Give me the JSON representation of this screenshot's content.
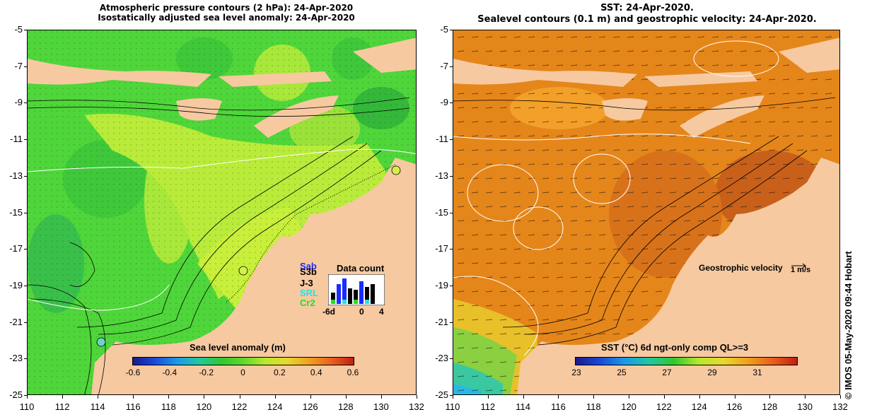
{
  "left_panel": {
    "title_line1": "Atmospheric pressure contours (2 hPa): 24-Apr-2020",
    "title_line2": "Isostatically adjusted sea level anomaly: 24-Apr-2020",
    "colorbar_title": "Sea level anomaly (m)",
    "colorbar_labels": [
      "-0.6",
      "-0.4",
      "-0.2",
      "0",
      "0.2",
      "0.4",
      "0.6"
    ],
    "data_count": {
      "title": "Data count",
      "satellites": [
        {
          "name": "Sab",
          "color": "#1a2cff"
        },
        {
          "name": "S3b",
          "color": "#000000"
        },
        {
          "name": "J-3",
          "color": "#000000"
        },
        {
          "name": "SRL",
          "color": "#28e0e0"
        },
        {
          "name": "Cr2",
          "color": "#22dd22"
        }
      ],
      "axis_labels": [
        "-6d",
        "0",
        "4"
      ]
    }
  },
  "right_panel": {
    "title_line1": "SST: 24-Apr-2020.",
    "title_line2": "Sealevel contours (0.1 m) and geostrophic velocity: 24-Apr-2020.",
    "colorbar_title": "SST (°C) 6d ngt-only comp QL>=3",
    "colorbar_labels": [
      "23",
      "25",
      "27",
      "29",
      "31"
    ],
    "velocity_label": "Geostrophic velocity",
    "velocity_unit": "1 m/s"
  },
  "axes": {
    "y_ticks": [
      "-5",
      "-7",
      "-9",
      "-11",
      "-13",
      "-15",
      "-17",
      "-19",
      "-21",
      "-23",
      "-25"
    ],
    "x_ticks": [
      "110",
      "112",
      "114",
      "116",
      "118",
      "120",
      "122",
      "124",
      "126",
      "128",
      "130",
      "132"
    ]
  },
  "credit": "©  IMOS 05-May-2020 09:44 Hobart",
  "colors": {
    "land": "#f7c9a0",
    "sla_ocean": "#4fd63a",
    "sst_ocean": "#e5861a"
  }
}
